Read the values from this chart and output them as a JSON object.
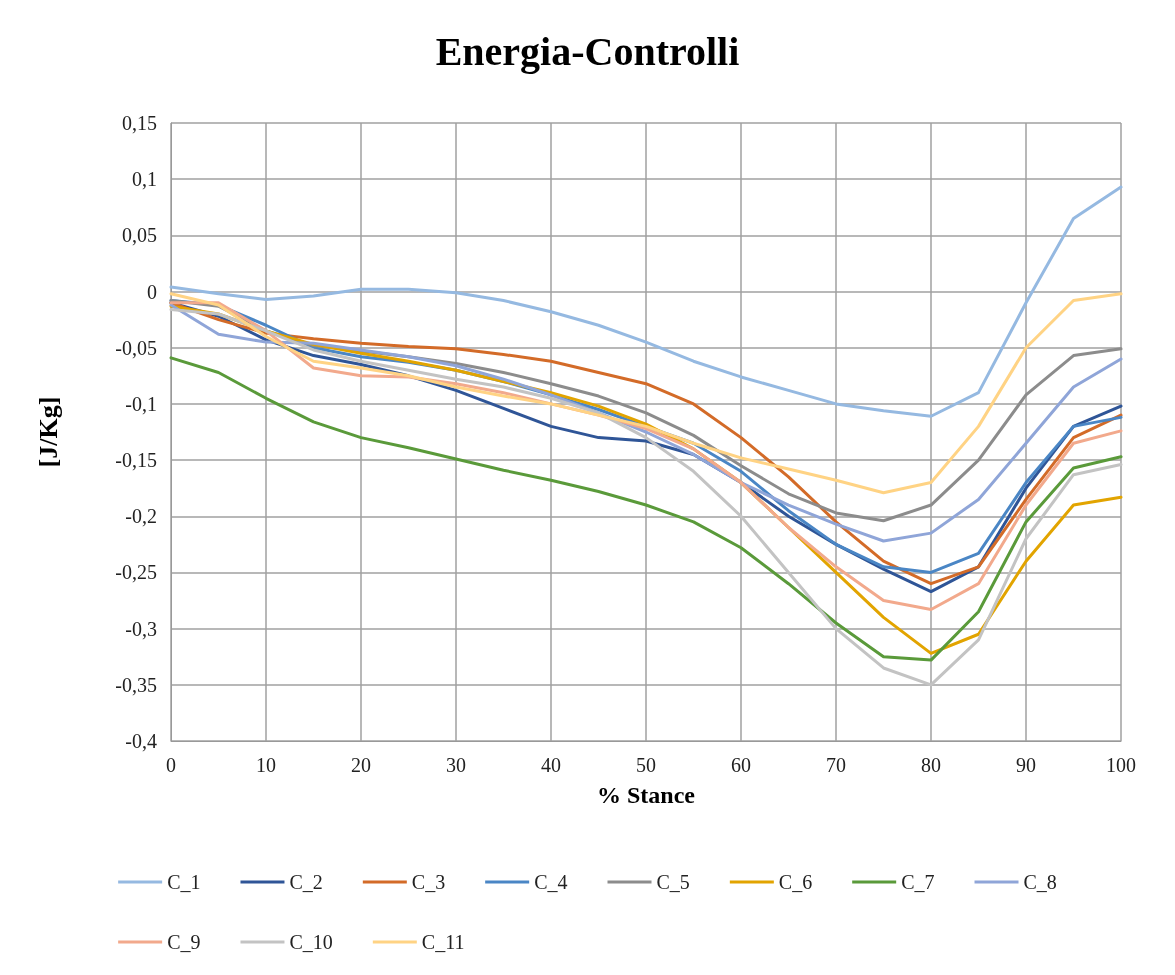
{
  "chart_data": {
    "type": "line",
    "title": "Energia-Controlli",
    "xlabel": "% Stance",
    "ylabel": "[J/Kg]",
    "x": [
      0,
      5,
      10,
      15,
      20,
      25,
      30,
      35,
      40,
      45,
      50,
      55,
      60,
      65,
      70,
      75,
      80,
      85,
      90,
      95,
      100
    ],
    "xlim": [
      0,
      100
    ],
    "xticks": [
      0,
      10,
      20,
      30,
      40,
      50,
      60,
      70,
      80,
      90,
      100
    ],
    "ylim": [
      -0.4,
      0.15
    ],
    "yticks": [
      {
        "value": -0.4,
        "label": "-0,4"
      },
      {
        "value": -0.35,
        "label": "-0,35"
      },
      {
        "value": -0.3,
        "label": "-0,3"
      },
      {
        "value": -0.25,
        "label": "-0,25"
      },
      {
        "value": -0.2,
        "label": "-0,2"
      },
      {
        "value": -0.15,
        "label": "-0,15"
      },
      {
        "value": -0.1,
        "label": "-0,1"
      },
      {
        "value": -0.05,
        "label": "-0,05"
      },
      {
        "value": 0,
        "label": "0"
      },
      {
        "value": 0.05,
        "label": "0,05"
      },
      {
        "value": 0.1,
        "label": "0,1"
      },
      {
        "value": 0.15,
        "label": "0,15"
      }
    ],
    "grid": true,
    "legend": "bottom",
    "marker": "none",
    "line_style": "solid",
    "series": [
      {
        "name": "C_1",
        "color": "#95b9e1",
        "values": [
          0.004,
          -0.002,
          -0.007,
          -0.004,
          0.002,
          0.002,
          -0.001,
          -0.008,
          -0.018,
          -0.03,
          -0.045,
          -0.062,
          -0.076,
          -0.088,
          -0.1,
          -0.106,
          -0.111,
          -0.09,
          -0.01,
          0.065,
          0.093
        ]
      },
      {
        "name": "C_2",
        "color": "#2f5597",
        "values": [
          -0.01,
          -0.022,
          -0.043,
          -0.057,
          -0.065,
          -0.075,
          -0.088,
          -0.104,
          -0.12,
          -0.13,
          -0.133,
          -0.145,
          -0.17,
          -0.2,
          -0.225,
          -0.247,
          -0.267,
          -0.245,
          -0.175,
          -0.12,
          -0.102
        ]
      },
      {
        "name": "C_3",
        "color": "#d36b28",
        "values": [
          -0.01,
          -0.025,
          -0.037,
          -0.042,
          -0.046,
          -0.049,
          -0.051,
          -0.056,
          -0.062,
          -0.072,
          -0.082,
          -0.1,
          -0.13,
          -0.165,
          -0.205,
          -0.24,
          -0.26,
          -0.245,
          -0.185,
          -0.13,
          -0.11
        ]
      },
      {
        "name": "C_4",
        "color": "#4a86c5",
        "values": [
          -0.008,
          -0.012,
          -0.03,
          -0.05,
          -0.058,
          -0.063,
          -0.07,
          -0.08,
          -0.092,
          -0.105,
          -0.12,
          -0.135,
          -0.16,
          -0.195,
          -0.225,
          -0.245,
          -0.25,
          -0.233,
          -0.17,
          -0.12,
          -0.112
        ]
      },
      {
        "name": "C_5",
        "color": "#8c8c8c",
        "values": [
          -0.008,
          -0.013,
          -0.035,
          -0.048,
          -0.053,
          -0.058,
          -0.064,
          -0.072,
          -0.082,
          -0.093,
          -0.108,
          -0.128,
          -0.155,
          -0.18,
          -0.197,
          -0.204,
          -0.19,
          -0.15,
          -0.092,
          -0.057,
          -0.051
        ]
      },
      {
        "name": "C_6",
        "color": "#e2a400",
        "values": [
          -0.013,
          -0.02,
          -0.035,
          -0.047,
          -0.055,
          -0.062,
          -0.07,
          -0.08,
          -0.09,
          -0.102,
          -0.118,
          -0.14,
          -0.17,
          -0.21,
          -0.25,
          -0.29,
          -0.322,
          -0.305,
          -0.24,
          -0.19,
          -0.183
        ]
      },
      {
        "name": "C_7",
        "color": "#5a9a3a",
        "values": [
          -0.059,
          -0.072,
          -0.095,
          -0.116,
          -0.13,
          -0.139,
          -0.149,
          -0.159,
          -0.168,
          -0.178,
          -0.19,
          -0.205,
          -0.228,
          -0.26,
          -0.295,
          -0.325,
          -0.328,
          -0.285,
          -0.205,
          -0.157,
          -0.147
        ]
      },
      {
        "name": "C_8",
        "color": "#8fa5d8",
        "values": [
          -0.012,
          -0.038,
          -0.045,
          -0.046,
          -0.052,
          -0.058,
          -0.066,
          -0.078,
          -0.092,
          -0.108,
          -0.125,
          -0.145,
          -0.17,
          -0.19,
          -0.207,
          -0.222,
          -0.215,
          -0.185,
          -0.135,
          -0.085,
          -0.06
        ]
      },
      {
        "name": "C_9",
        "color": "#f2a98c",
        "values": [
          -0.01,
          -0.01,
          -0.035,
          -0.068,
          -0.075,
          -0.076,
          -0.082,
          -0.09,
          -0.1,
          -0.11,
          -0.122,
          -0.14,
          -0.17,
          -0.21,
          -0.245,
          -0.275,
          -0.283,
          -0.26,
          -0.19,
          -0.135,
          -0.124
        ]
      },
      {
        "name": "C_10",
        "color": "#c3c3c3",
        "values": [
          -0.016,
          -0.02,
          -0.035,
          -0.052,
          -0.062,
          -0.07,
          -0.078,
          -0.085,
          -0.095,
          -0.108,
          -0.13,
          -0.16,
          -0.2,
          -0.25,
          -0.3,
          -0.335,
          -0.35,
          -0.31,
          -0.22,
          -0.163,
          -0.154
        ]
      },
      {
        "name": "C_11",
        "color": "#ffd384",
        "values": [
          -0.002,
          -0.012,
          -0.04,
          -0.062,
          -0.068,
          -0.075,
          -0.085,
          -0.093,
          -0.1,
          -0.11,
          -0.12,
          -0.135,
          -0.148,
          -0.158,
          -0.168,
          -0.179,
          -0.17,
          -0.12,
          -0.05,
          -0.008,
          -0.002
        ]
      }
    ]
  }
}
